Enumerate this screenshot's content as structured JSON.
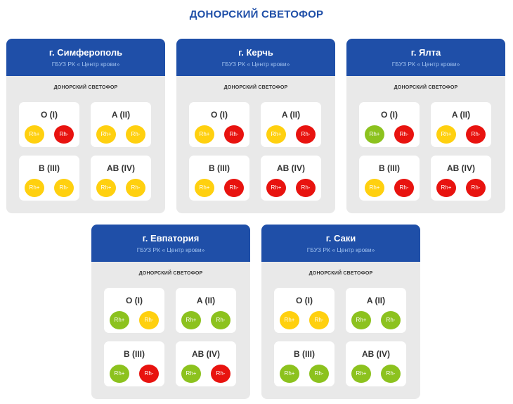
{
  "page": {
    "title": "ДОНОРСКИЙ СВЕТОФОР"
  },
  "colors": {
    "yellow": "#ffd00f",
    "red": "#e8130f",
    "green": "#8cc21e",
    "brand": "#1f4fa8"
  },
  "cards": [
    {
      "city": "г. Симферополь",
      "org": "ГБУЗ РК « Центр крови»",
      "label": "ДОНОРСКИЙ СВЕТОФОР",
      "groups": [
        {
          "name": "O (I)",
          "pos": {
            "text": "Rh+",
            "status": "yellow"
          },
          "neg": {
            "text": "Rh-",
            "status": "red"
          }
        },
        {
          "name": "A (II)",
          "pos": {
            "text": "Rh+",
            "status": "yellow"
          },
          "neg": {
            "text": "Rh-",
            "status": "yellow"
          }
        },
        {
          "name": "B (III)",
          "pos": {
            "text": "Rh+",
            "status": "yellow"
          },
          "neg": {
            "text": "Rh-",
            "status": "yellow"
          }
        },
        {
          "name": "AB (IV)",
          "pos": {
            "text": "Rh+",
            "status": "yellow"
          },
          "neg": {
            "text": "Rh-",
            "status": "yellow"
          }
        }
      ]
    },
    {
      "city": "г. Керчь",
      "org": "ГБУЗ РК « Центр крови»",
      "label": "ДОНОРСКИЙ СВЕТОФОР",
      "groups": [
        {
          "name": "O (I)",
          "pos": {
            "text": "Rh+",
            "status": "yellow"
          },
          "neg": {
            "text": "Rh-",
            "status": "red"
          }
        },
        {
          "name": "A (II)",
          "pos": {
            "text": "Rh+",
            "status": "yellow"
          },
          "neg": {
            "text": "Rh-",
            "status": "red"
          }
        },
        {
          "name": "B (III)",
          "pos": {
            "text": "Rh+",
            "status": "yellow"
          },
          "neg": {
            "text": "Rh-",
            "status": "red"
          }
        },
        {
          "name": "AB (IV)",
          "pos": {
            "text": "Rh+",
            "status": "red"
          },
          "neg": {
            "text": "Rh-",
            "status": "red"
          }
        }
      ]
    },
    {
      "city": "г. Ялта",
      "org": "ГБУЗ РК « Центр крови»",
      "label": "ДОНОРСКИЙ СВЕТОФОР",
      "groups": [
        {
          "name": "O (I)",
          "pos": {
            "text": "Rh+",
            "status": "green"
          },
          "neg": {
            "text": "Rh-",
            "status": "red"
          }
        },
        {
          "name": "A (II)",
          "pos": {
            "text": "Rh+",
            "status": "yellow"
          },
          "neg": {
            "text": "Rh-",
            "status": "red"
          }
        },
        {
          "name": "B (III)",
          "pos": {
            "text": "Rh+",
            "status": "yellow"
          },
          "neg": {
            "text": "Rh-",
            "status": "red"
          }
        },
        {
          "name": "AB (IV)",
          "pos": {
            "text": "Rh+",
            "status": "red"
          },
          "neg": {
            "text": "Rh-",
            "status": "red"
          }
        }
      ]
    },
    {
      "city": "г. Евпатория",
      "org": "ГБУЗ РК « Центр крови»",
      "label": "ДОНОРСКИЙ СВЕТОФОР",
      "groups": [
        {
          "name": "O (I)",
          "pos": {
            "text": "Rh+",
            "status": "green"
          },
          "neg": {
            "text": "Rh-",
            "status": "yellow"
          }
        },
        {
          "name": "A (II)",
          "pos": {
            "text": "Rh+",
            "status": "green"
          },
          "neg": {
            "text": "Rh-",
            "status": "green"
          }
        },
        {
          "name": "B (III)",
          "pos": {
            "text": "Rh+",
            "status": "green"
          },
          "neg": {
            "text": "Rh-",
            "status": "red"
          }
        },
        {
          "name": "AB (IV)",
          "pos": {
            "text": "Rh+",
            "status": "green"
          },
          "neg": {
            "text": "Rh-",
            "status": "red"
          }
        }
      ]
    },
    {
      "city": "г. Саки",
      "org": "ГБУЗ РК « Центр крови»",
      "label": "ДОНОРСКИЙ СВЕТОФОР",
      "groups": [
        {
          "name": "O (I)",
          "pos": {
            "text": "Rh+",
            "status": "yellow"
          },
          "neg": {
            "text": "Rh-",
            "status": "yellow"
          }
        },
        {
          "name": "A (II)",
          "pos": {
            "text": "Rh+",
            "status": "green"
          },
          "neg": {
            "text": "Rh-",
            "status": "green"
          }
        },
        {
          "name": "B (III)",
          "pos": {
            "text": "Rh+",
            "status": "green"
          },
          "neg": {
            "text": "Rh-",
            "status": "green"
          }
        },
        {
          "name": "AB (IV)",
          "pos": {
            "text": "Rh+",
            "status": "green"
          },
          "neg": {
            "text": "Rh-",
            "status": "green"
          }
        }
      ]
    }
  ]
}
